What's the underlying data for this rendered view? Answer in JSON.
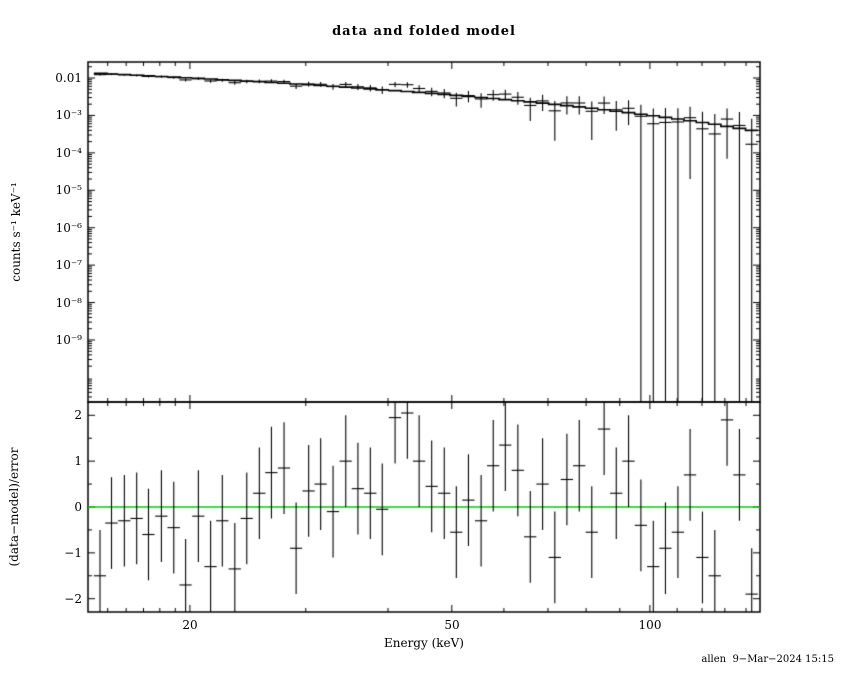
{
  "caption": "allen  9−Mar−2024 15:15",
  "colors": {
    "background": "#ffffff",
    "foreground": "#000000",
    "model_line": "#000000",
    "zero_line": "#00cc00"
  },
  "chart_data": {
    "type": "scatter",
    "title": "data and folded model",
    "xlabel": "Energy (keV)",
    "x_scale": "log",
    "x_range": [
      14.0,
      147.0
    ],
    "x_ticks_labeled": [
      20,
      50,
      100
    ],
    "x_tick_display": [
      "20",
      "50",
      "100"
    ],
    "x_ticks_minor": [
      15,
      16,
      17,
      18,
      19,
      30,
      40,
      60,
      70,
      80,
      90,
      110,
      120,
      130,
      140
    ],
    "panels": [
      {
        "name": "spectrum",
        "ylabel": "counts s⁻¹ keV⁻¹",
        "y_scale": "log",
        "y_range": [
          2.2e-11,
          0.0268
        ],
        "ytick_values": [
          0.01,
          0.001,
          0.0001,
          1e-05,
          1e-06,
          1e-07,
          1e-08,
          1e-09
        ],
        "ytick_labels": [
          "0.01",
          "10⁻³",
          "10⁻⁴",
          "10⁻⁵",
          "10⁻⁶",
          "10⁻⁷",
          "10⁻⁸",
          "10⁻⁹"
        ]
      },
      {
        "name": "residuals",
        "ylabel": "(data−model)/error",
        "y_scale": "linear",
        "y_range": [
          -2.29,
          2.29
        ],
        "ytick_values": [
          2,
          1,
          0,
          -1,
          -2
        ],
        "ytick_labels": [
          "2",
          "1",
          "0",
          "−1",
          "−2"
        ],
        "zero_line_value": 0
      }
    ],
    "series": {
      "energy_kev": [
        14.6,
        15.2,
        15.9,
        16.6,
        17.3,
        18.1,
        18.9,
        19.7,
        20.6,
        21.5,
        22.4,
        23.4,
        24.4,
        25.5,
        26.6,
        27.8,
        29.0,
        30.3,
        31.6,
        33.0,
        34.5,
        36.0,
        37.6,
        39.2,
        41.0,
        42.8,
        44.6,
        46.6,
        48.7,
        50.8,
        53.0,
        55.4,
        57.8,
        60.3,
        63.0,
        65.8,
        68.7,
        71.7,
        74.8,
        78.1,
        81.6,
        85.2,
        88.9,
        92.8,
        96.9,
        101.2,
        105.6,
        110.3,
        115.1,
        120.2,
        125.5,
        131.0,
        136.8,
        142.8
      ],
      "energy_halfwidth_kev": [
        0.31,
        0.33,
        0.34,
        0.36,
        0.37,
        0.39,
        0.41,
        0.42,
        0.44,
        0.46,
        0.48,
        0.5,
        0.52,
        0.55,
        0.57,
        0.6,
        0.62,
        0.65,
        0.68,
        0.71,
        0.74,
        0.77,
        0.81,
        0.84,
        0.88,
        0.92,
        0.96,
        1.0,
        1.05,
        1.09,
        1.14,
        1.19,
        1.24,
        1.3,
        1.35,
        1.41,
        1.48,
        1.54,
        1.61,
        1.68,
        1.75,
        1.83,
        1.91,
        2.0,
        2.08,
        2.18,
        2.27,
        2.37,
        2.47,
        2.58,
        2.7,
        2.82,
        2.94,
        3.07
      ],
      "rate": [
        0.0123,
        0.01263,
        0.01217,
        0.01174,
        0.01106,
        0.01088,
        0.01026,
        0.0089,
        0.00963,
        0.00834,
        0.00878,
        0.00749,
        0.00808,
        0.00821,
        0.00829,
        0.00805,
        0.00606,
        0.00696,
        0.0068,
        0.0059,
        0.00674,
        0.00584,
        0.00546,
        0.00483,
        0.00675,
        0.00663,
        0.00525,
        0.0044,
        0.00399,
        0.00287,
        0.00339,
        0.00276,
        0.00361,
        0.00372,
        0.00306,
        0.00185,
        0.00245,
        0.00133,
        0.00216,
        0.00215,
        0.00129,
        0.00214,
        0.00142,
        0.00155,
        0.00095,
        0.0006,
        0.00065,
        0.00067,
        0.00087,
        0.00044,
        0.00032,
        0.0008,
        0.00054,
        0.00017
      ],
      "rate_err": [
        0.00064,
        0.00066,
        0.00068,
        0.00069,
        0.00071,
        0.00073,
        0.00075,
        0.00077,
        0.0008,
        0.00082,
        0.00084,
        0.00087,
        0.00088,
        0.00091,
        0.00092,
        0.00094,
        0.00096,
        0.00098,
        0.001,
        0.00102,
        0.00104,
        0.00105,
        0.00107,
        0.00108,
        0.0011,
        0.00111,
        0.00112,
        0.00113,
        0.00113,
        0.00114,
        0.00115,
        0.00115,
        0.00115,
        0.00114,
        0.00114,
        0.00114,
        0.00113,
        0.00112,
        0.0011,
        0.00109,
        0.00107,
        0.00105,
        0.00103,
        0.001,
        0.00097,
        0.00094,
        0.00092,
        0.00088,
        0.00085,
        0.00082,
        0.00078,
        0.00073,
        0.00069,
        0.00064
      ],
      "model": [
        0.0133,
        0.01286,
        0.01237,
        0.01191,
        0.01149,
        0.01103,
        0.0106,
        0.01021,
        0.00979,
        0.0094,
        0.00903,
        0.00866,
        0.0083,
        0.00794,
        0.0076,
        0.00725,
        0.00693,
        0.00661,
        0.0063,
        0.006,
        0.0057,
        0.00542,
        0.00514,
        0.00488,
        0.00461,
        0.00436,
        0.00413,
        0.00389,
        0.00366,
        0.00344,
        0.00324,
        0.00303,
        0.00284,
        0.00265,
        0.00247,
        0.0023,
        0.00213,
        0.00198,
        0.00183,
        0.00169,
        0.00155,
        0.00142,
        0.0013,
        0.00119,
        0.00108,
        0.00098,
        0.00089,
        0.0008,
        0.00072,
        0.00065,
        0.00058,
        0.00051,
        0.00045,
        0.0004
      ],
      "residual": [
        -1.5,
        -0.35,
        -0.3,
        -0.25,
        -0.6,
        -0.2,
        -0.45,
        -1.7,
        -0.2,
        -1.3,
        -0.3,
        -1.35,
        -0.25,
        0.3,
        0.75,
        0.85,
        -0.9,
        0.35,
        0.5,
        -0.1,
        1.0,
        0.4,
        0.3,
        -0.05,
        1.95,
        2.05,
        1.0,
        0.45,
        0.3,
        -0.55,
        0.15,
        -0.3,
        0.9,
        1.35,
        0.8,
        -0.65,
        0.5,
        -1.1,
        0.6,
        0.9,
        -0.55,
        1.7,
        0.3,
        1.0,
        -0.4,
        -1.3,
        -0.9,
        -0.55,
        0.7,
        -1.1,
        -1.5,
        1.9,
        0.7,
        -1.9
      ],
      "residual_err": 1
    }
  }
}
